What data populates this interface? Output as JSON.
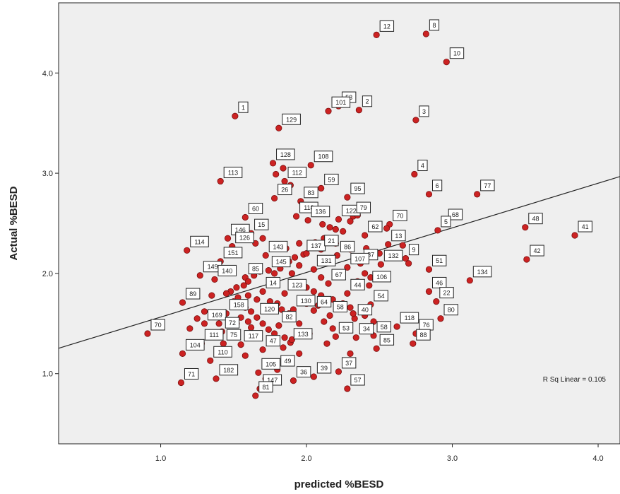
{
  "chart_data": {
    "type": "scatter",
    "xlabel": "predicted %BESD",
    "ylabel": "Actual %BESD",
    "xlim": [
      0.3,
      4.15
    ],
    "ylim": [
      0.3,
      4.7
    ],
    "xticks": [
      1.0,
      2.0,
      3.0,
      4.0
    ],
    "xtick_labels": [
      "1.0",
      "2.0",
      "3.0",
      "4.0"
    ],
    "yticks": [
      1.0,
      2.0,
      3.0,
      4.0
    ],
    "ytick_labels": [
      "1.0",
      "2.0",
      "3.0",
      "4.0"
    ],
    "grid": false,
    "fit_line": {
      "slope": 0.445,
      "intercept": 1.12,
      "x_range": [
        0.3,
        4.15
      ]
    },
    "r2_annotation": "R Sq Linear = 0.105",
    "colors": {
      "point": "#cc2222",
      "background": "#efefef",
      "line": "#222222"
    },
    "labeled_points": [
      {
        "label": "12",
        "x": 2.48,
        "y": 4.38
      },
      {
        "label": "8",
        "x": 2.82,
        "y": 4.39
      },
      {
        "label": "10",
        "x": 2.96,
        "y": 4.11
      },
      {
        "label": "1",
        "x": 1.51,
        "y": 3.57
      },
      {
        "label": "129",
        "x": 1.81,
        "y": 3.45
      },
      {
        "label": "53",
        "x": 2.22,
        "y": 3.67
      },
      {
        "label": "2",
        "x": 2.36,
        "y": 3.63
      },
      {
        "label": "101",
        "x": 2.15,
        "y": 3.62
      },
      {
        "label": "3",
        "x": 2.75,
        "y": 3.53
      },
      {
        "label": "128",
        "x": 1.77,
        "y": 3.1
      },
      {
        "label": "112",
        "x": 1.85,
        "y": 2.92
      },
      {
        "label": "108",
        "x": 2.03,
        "y": 3.08
      },
      {
        "label": "4",
        "x": 2.74,
        "y": 2.99
      },
      {
        "label": "113",
        "x": 1.41,
        "y": 2.92
      },
      {
        "label": "26",
        "x": 1.78,
        "y": 2.75
      },
      {
        "label": "59",
        "x": 2.1,
        "y": 2.85
      },
      {
        "label": "83",
        "x": 1.96,
        "y": 2.72
      },
      {
        "label": "95",
        "x": 2.28,
        "y": 2.76
      },
      {
        "label": "6",
        "x": 2.84,
        "y": 2.79
      },
      {
        "label": "77",
        "x": 3.17,
        "y": 2.79
      },
      {
        "label": "60",
        "x": 1.58,
        "y": 2.56
      },
      {
        "label": "122",
        "x": 2.22,
        "y": 2.54
      },
      {
        "label": "79",
        "x": 2.32,
        "y": 2.57
      },
      {
        "label": "118",
        "x": 1.93,
        "y": 2.57
      },
      {
        "label": "136",
        "x": 2.01,
        "y": 2.53
      },
      {
        "label": "70",
        "x": 2.57,
        "y": 2.49
      },
      {
        "label": "68",
        "x": 2.95,
        "y": 2.5
      },
      {
        "label": "48",
        "x": 3.5,
        "y": 2.46
      },
      {
        "label": "41",
        "x": 3.84,
        "y": 2.38
      },
      {
        "label": "15",
        "x": 1.62,
        "y": 2.4
      },
      {
        "label": "146",
        "x": 1.46,
        "y": 2.35
      },
      {
        "label": "5",
        "x": 2.9,
        "y": 2.43
      },
      {
        "label": "62",
        "x": 2.4,
        "y": 2.38
      },
      {
        "label": "13",
        "x": 2.56,
        "y": 2.29
      },
      {
        "label": "114",
        "x": 1.18,
        "y": 2.23
      },
      {
        "label": "126",
        "x": 1.49,
        "y": 2.27
      },
      {
        "label": "143",
        "x": 1.72,
        "y": 2.18
      },
      {
        "label": "137",
        "x": 1.98,
        "y": 2.19
      },
      {
        "label": "21",
        "x": 2.1,
        "y": 2.24
      },
      {
        "label": "86",
        "x": 2.21,
        "y": 2.18
      },
      {
        "label": "9",
        "x": 2.68,
        "y": 2.15
      },
      {
        "label": "42",
        "x": 3.51,
        "y": 2.14
      },
      {
        "label": "151",
        "x": 1.41,
        "y": 2.12
      },
      {
        "label": "87",
        "x": 2.37,
        "y": 2.1
      },
      {
        "label": "132",
        "x": 2.51,
        "y": 2.09
      },
      {
        "label": "145",
        "x": 1.74,
        "y": 2.03
      },
      {
        "label": "131",
        "x": 2.05,
        "y": 2.04
      },
      {
        "label": "107",
        "x": 2.28,
        "y": 2.06
      },
      {
        "label": "51",
        "x": 2.84,
        "y": 2.04
      },
      {
        "label": "134",
        "x": 3.12,
        "y": 1.93
      },
      {
        "label": "149",
        "x": 1.27,
        "y": 1.98
      },
      {
        "label": "140",
        "x": 1.37,
        "y": 1.94
      },
      {
        "label": "85",
        "x": 1.58,
        "y": 1.96
      },
      {
        "label": "67",
        "x": 2.15,
        "y": 1.9
      },
      {
        "label": "106",
        "x": 2.43,
        "y": 1.88
      },
      {
        "label": "46",
        "x": 2.84,
        "y": 1.82
      },
      {
        "label": "14",
        "x": 1.7,
        "y": 1.82
      },
      {
        "label": "123",
        "x": 1.85,
        "y": 1.8
      },
      {
        "label": "44",
        "x": 2.28,
        "y": 1.8
      },
      {
        "label": "22",
        "x": 2.89,
        "y": 1.72
      },
      {
        "label": "89",
        "x": 1.15,
        "y": 1.71
      },
      {
        "label": "54",
        "x": 2.44,
        "y": 1.69
      },
      {
        "label": "130",
        "x": 1.91,
        "y": 1.64
      },
      {
        "label": "64",
        "x": 2.05,
        "y": 1.63
      },
      {
        "label": "80",
        "x": 2.92,
        "y": 1.55
      },
      {
        "label": "158",
        "x": 1.45,
        "y": 1.6
      },
      {
        "label": "120",
        "x": 1.66,
        "y": 1.56
      },
      {
        "label": "58",
        "x": 2.16,
        "y": 1.58
      },
      {
        "label": "40",
        "x": 2.33,
        "y": 1.55
      },
      {
        "label": "70",
        "x": 0.91,
        "y": 1.4
      },
      {
        "label": "169",
        "x": 1.3,
        "y": 1.5
      },
      {
        "label": "82",
        "x": 1.81,
        "y": 1.48
      },
      {
        "label": "118",
        "x": 2.62,
        "y": 1.47
      },
      {
        "label": "72",
        "x": 1.42,
        "y": 1.42
      },
      {
        "label": "76",
        "x": 2.75,
        "y": 1.4
      },
      {
        "label": "53",
        "x": 2.2,
        "y": 1.37
      },
      {
        "label": "34",
        "x": 2.34,
        "y": 1.36
      },
      {
        "label": "58",
        "x": 2.46,
        "y": 1.38
      },
      {
        "label": "75",
        "x": 1.43,
        "y": 1.3
      },
      {
        "label": "117",
        "x": 1.55,
        "y": 1.29
      },
      {
        "label": "133",
        "x": 1.89,
        "y": 1.31
      },
      {
        "label": "111",
        "x": 1.28,
        "y": 1.3
      },
      {
        "label": "47",
        "x": 1.7,
        "y": 1.24
      },
      {
        "label": "104",
        "x": 1.15,
        "y": 1.2
      },
      {
        "label": "110",
        "x": 1.34,
        "y": 1.13
      },
      {
        "label": "85",
        "x": 2.48,
        "y": 1.25
      },
      {
        "label": "88",
        "x": 2.73,
        "y": 1.3
      },
      {
        "label": "37",
        "x": 2.22,
        "y": 1.02
      },
      {
        "label": "105",
        "x": 1.67,
        "y": 1.01
      },
      {
        "label": "49",
        "x": 1.8,
        "y": 1.04
      },
      {
        "label": "71",
        "x": 1.14,
        "y": 0.91
      },
      {
        "label": "147",
        "x": 1.68,
        "y": 0.85
      },
      {
        "label": "182",
        "x": 1.38,
        "y": 0.95
      },
      {
        "label": "36",
        "x": 1.91,
        "y": 0.93
      },
      {
        "label": "39",
        "x": 2.05,
        "y": 0.97
      },
      {
        "label": "57",
        "x": 2.28,
        "y": 0.85
      },
      {
        "label": "81",
        "x": 1.65,
        "y": 0.78
      }
    ],
    "points": [
      [
        2.48,
        4.38
      ],
      [
        2.82,
        4.39
      ],
      [
        2.96,
        4.11
      ],
      [
        1.51,
        3.57
      ],
      [
        1.81,
        3.45
      ],
      [
        2.22,
        3.67
      ],
      [
        2.36,
        3.63
      ],
      [
        2.15,
        3.62
      ],
      [
        2.75,
        3.53
      ],
      [
        1.77,
        3.1
      ],
      [
        1.85,
        2.92
      ],
      [
        2.03,
        3.08
      ],
      [
        2.74,
        2.99
      ],
      [
        1.41,
        2.92
      ],
      [
        1.78,
        2.75
      ],
      [
        2.1,
        2.85
      ],
      [
        1.96,
        2.72
      ],
      [
        2.28,
        2.76
      ],
      [
        2.84,
        2.79
      ],
      [
        3.17,
        2.79
      ],
      [
        1.58,
        2.56
      ],
      [
        2.22,
        2.54
      ],
      [
        2.32,
        2.57
      ],
      [
        1.93,
        2.57
      ],
      [
        2.01,
        2.53
      ],
      [
        2.57,
        2.49
      ],
      [
        2.95,
        2.5
      ],
      [
        3.5,
        2.46
      ],
      [
        3.84,
        2.38
      ],
      [
        1.62,
        2.4
      ],
      [
        1.46,
        2.35
      ],
      [
        2.9,
        2.43
      ],
      [
        2.4,
        2.38
      ],
      [
        2.56,
        2.29
      ],
      [
        1.18,
        2.23
      ],
      [
        1.49,
        2.27
      ],
      [
        1.72,
        2.18
      ],
      [
        1.98,
        2.19
      ],
      [
        2.1,
        2.24
      ],
      [
        2.21,
        2.18
      ],
      [
        2.68,
        2.15
      ],
      [
        3.51,
        2.14
      ],
      [
        1.41,
        2.12
      ],
      [
        2.37,
        2.1
      ],
      [
        2.51,
        2.09
      ],
      [
        1.74,
        2.03
      ],
      [
        2.05,
        2.04
      ],
      [
        2.28,
        2.06
      ],
      [
        2.84,
        2.04
      ],
      [
        3.12,
        1.93
      ],
      [
        1.27,
        1.98
      ],
      [
        1.37,
        1.94
      ],
      [
        1.58,
        1.96
      ],
      [
        2.15,
        1.9
      ],
      [
        2.43,
        1.88
      ],
      [
        2.84,
        1.82
      ],
      [
        1.7,
        1.82
      ],
      [
        1.85,
        1.8
      ],
      [
        2.28,
        1.8
      ],
      [
        2.89,
        1.72
      ],
      [
        1.15,
        1.71
      ],
      [
        2.44,
        1.69
      ],
      [
        1.91,
        1.64
      ],
      [
        2.05,
        1.63
      ],
      [
        2.92,
        1.55
      ],
      [
        1.45,
        1.6
      ],
      [
        1.66,
        1.56
      ],
      [
        2.16,
        1.58
      ],
      [
        2.33,
        1.55
      ],
      [
        0.91,
        1.4
      ],
      [
        1.3,
        1.5
      ],
      [
        1.81,
        1.48
      ],
      [
        2.62,
        1.47
      ],
      [
        1.42,
        1.42
      ],
      [
        2.75,
        1.4
      ],
      [
        2.2,
        1.37
      ],
      [
        2.34,
        1.36
      ],
      [
        2.46,
        1.38
      ],
      [
        1.43,
        1.3
      ],
      [
        1.55,
        1.29
      ],
      [
        1.89,
        1.31
      ],
      [
        1.28,
        1.3
      ],
      [
        1.7,
        1.24
      ],
      [
        1.15,
        1.2
      ],
      [
        1.34,
        1.13
      ],
      [
        2.48,
        1.25
      ],
      [
        2.73,
        1.3
      ],
      [
        2.22,
        1.02
      ],
      [
        1.67,
        1.01
      ],
      [
        1.8,
        1.04
      ],
      [
        1.14,
        0.91
      ],
      [
        1.68,
        0.85
      ],
      [
        1.38,
        0.95
      ],
      [
        1.91,
        0.93
      ],
      [
        2.05,
        0.97
      ],
      [
        2.28,
        0.85
      ],
      [
        1.65,
        0.78
      ],
      [
        1.79,
        2.99
      ],
      [
        1.84,
        3.05
      ],
      [
        1.89,
        2.88
      ],
      [
        2.11,
        2.49
      ],
      [
        2.16,
        2.46
      ],
      [
        2.2,
        2.44
      ],
      [
        2.25,
        2.42
      ],
      [
        2.12,
        2.35
      ],
      [
        2.3,
        2.52
      ],
      [
        2.35,
        2.58
      ],
      [
        2.41,
        2.25
      ],
      [
        2.5,
        2.2
      ],
      [
        2.55,
        2.45
      ],
      [
        2.06,
        2.31
      ],
      [
        1.95,
        2.3
      ],
      [
        1.86,
        2.25
      ],
      [
        1.88,
        2.12
      ],
      [
        1.92,
        2.16
      ],
      [
        1.82,
        2.05
      ],
      [
        1.78,
        2.0
      ],
      [
        1.68,
        2.02
      ],
      [
        1.64,
        1.98
      ],
      [
        1.6,
        1.92
      ],
      [
        1.57,
        1.88
      ],
      [
        1.52,
        1.86
      ],
      [
        1.48,
        1.82
      ],
      [
        1.45,
        1.8
      ],
      [
        1.53,
        1.76
      ],
      [
        1.6,
        1.78
      ],
      [
        1.66,
        1.74
      ],
      [
        1.75,
        1.72
      ],
      [
        1.8,
        1.7
      ],
      [
        1.76,
        1.66
      ],
      [
        1.83,
        1.64
      ],
      [
        1.88,
        1.6
      ],
      [
        1.58,
        1.66
      ],
      [
        1.62,
        1.62
      ],
      [
        1.55,
        1.56
      ],
      [
        1.6,
        1.52
      ],
      [
        1.7,
        1.5
      ],
      [
        1.74,
        1.44
      ],
      [
        1.78,
        1.4
      ],
      [
        1.85,
        1.36
      ],
      [
        1.9,
        1.34
      ],
      [
        1.95,
        1.2
      ],
      [
        1.84,
        1.26
      ],
      [
        1.76,
        1.32
      ],
      [
        1.66,
        1.4
      ],
      [
        1.62,
        1.46
      ],
      [
        2.0,
        1.86
      ],
      [
        2.05,
        1.82
      ],
      [
        2.1,
        1.78
      ],
      [
        2.18,
        1.74
      ],
      [
        2.25,
        1.7
      ],
      [
        2.3,
        1.66
      ],
      [
        2.38,
        1.62
      ],
      [
        2.0,
        1.7
      ],
      [
        2.08,
        1.68
      ],
      [
        2.12,
        1.52
      ],
      [
        2.18,
        1.45
      ],
      [
        2.26,
        1.48
      ],
      [
        2.32,
        1.6
      ],
      [
        2.4,
        1.58
      ],
      [
        2.46,
        1.52
      ],
      [
        2.4,
        2.0
      ],
      [
        2.44,
        1.96
      ],
      [
        2.48,
        1.98
      ],
      [
        2.35,
        1.92
      ],
      [
        2.1,
        1.96
      ],
      [
        2.0,
        2.2
      ],
      [
        1.95,
        2.08
      ],
      [
        1.9,
        2.0
      ],
      [
        1.7,
        2.35
      ],
      [
        1.65,
        2.3
      ],
      [
        2.6,
        2.2
      ],
      [
        2.66,
        2.28
      ],
      [
        2.7,
        2.1
      ],
      [
        2.3,
        2.24
      ],
      [
        2.2,
        2.3
      ],
      [
        1.35,
        1.78
      ],
      [
        1.5,
        1.72
      ],
      [
        1.3,
        1.62
      ],
      [
        1.25,
        1.55
      ],
      [
        1.2,
        1.45
      ],
      [
        1.4,
        1.5
      ],
      [
        1.52,
        1.5
      ],
      [
        1.45,
        1.2
      ],
      [
        1.58,
        1.18
      ],
      [
        1.95,
        1.5
      ],
      [
        2.02,
        1.4
      ],
      [
        2.14,
        1.3
      ],
      [
        2.3,
        1.2
      ],
      [
        1.72,
        0.95
      ]
    ]
  }
}
